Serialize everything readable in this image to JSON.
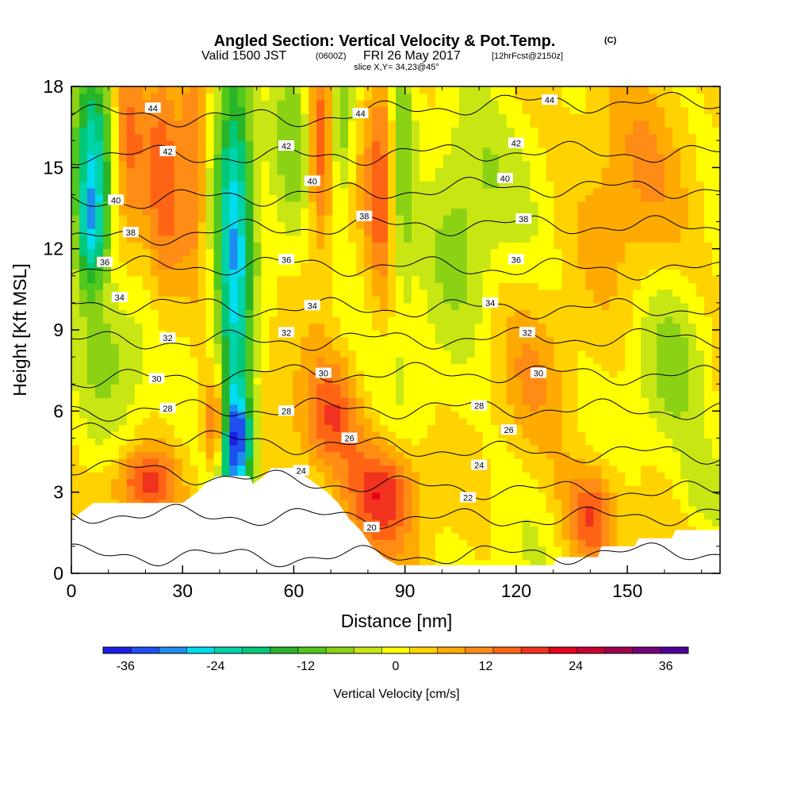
{
  "title": {
    "main": "Angled Section: Vertical Velocity & Pot.Temp.",
    "copyright": "(C)",
    "valid_prefix": "Valid 1500 JST",
    "valid_utc": "(0600Z)",
    "valid_date": "FRI 26 May 2017",
    "forecast": "[12hrFcst@2150z]",
    "slice": "slice X,Y= 34,23@45°"
  },
  "colors": {
    "ramp": [
      "#1e1ee6",
      "#1e50f0",
      "#1e8cf0",
      "#00dcf0",
      "#00d2aa",
      "#00c878",
      "#28b428",
      "#50c81e",
      "#8cd214",
      "#c8e614",
      "#ffff00",
      "#ffd200",
      "#ffaa00",
      "#ff8c14",
      "#ff6414",
      "#f0321e",
      "#e6001e",
      "#c80032",
      "#a00050",
      "#780078",
      "#500096"
    ],
    "terrain": "#ffffff",
    "contour": "#000000"
  },
  "chart_data": {
    "type": "heatmap",
    "xlabel": "Distance [nm]",
    "ylabel": "Height [Kft MSL]",
    "xlim": [
      0,
      175
    ],
    "ylim": [
      0,
      18
    ],
    "xticks": [
      0,
      30,
      60,
      90,
      120,
      150
    ],
    "yticks": [
      0,
      3,
      6,
      9,
      12,
      15,
      18
    ],
    "colorbar": {
      "label": "Vertical Velocity [cm/s]",
      "min": -39,
      "max": 39,
      "step": 3.714,
      "tick_values": [
        -36,
        -24,
        -12,
        0,
        12,
        24,
        36
      ],
      "tick_labels": [
        "-36",
        "-24",
        "-12",
        "0",
        "12",
        "24",
        "36"
      ]
    },
    "terrain_kft": [
      [
        0,
        2.0
      ],
      [
        3,
        2.3
      ],
      [
        6,
        2.6
      ],
      [
        30,
        2.6
      ],
      [
        34,
        3.0
      ],
      [
        36,
        3.3
      ],
      [
        39,
        3.6
      ],
      [
        48,
        3.6
      ],
      [
        49,
        3.3
      ],
      [
        52,
        3.6
      ],
      [
        54,
        3.9
      ],
      [
        60,
        3.9
      ],
      [
        63,
        3.6
      ],
      [
        66,
        3.3
      ],
      [
        69,
        3.0
      ],
      [
        72,
        2.6
      ],
      [
        75,
        2.0
      ],
      [
        78,
        1.6
      ],
      [
        81,
        1.0
      ],
      [
        84,
        0.6
      ],
      [
        88,
        0.3
      ],
      [
        96,
        0.3
      ],
      [
        130,
        0.3
      ],
      [
        131,
        0.6
      ],
      [
        142,
        0.6
      ],
      [
        143,
        1.0
      ],
      [
        152,
        1.0
      ],
      [
        153,
        1.3
      ],
      [
        162,
        1.3
      ],
      [
        163,
        1.6
      ],
      [
        175,
        1.6
      ]
    ],
    "velocity_features": [
      {
        "x": 44,
        "y": 10,
        "sx": 3.5,
        "sy": 8,
        "amp": -28
      },
      {
        "x": 45,
        "y": 5,
        "sx": 3,
        "sy": 1.2,
        "amp": -20
      },
      {
        "x": 6,
        "y": 15,
        "sx": 4,
        "sy": 3,
        "amp": -25
      },
      {
        "x": 5,
        "y": 12.5,
        "sx": 2.5,
        "sy": 1.5,
        "amp": -14
      },
      {
        "x": 15,
        "y": 16,
        "sx": 3,
        "sy": 3,
        "amp": 10
      },
      {
        "x": 25,
        "y": 15,
        "sx": 3.5,
        "sy": 4.5,
        "amp": 10
      },
      {
        "x": 33,
        "y": 16,
        "sx": 2.5,
        "sy": 3,
        "amp": 12
      },
      {
        "x": 39,
        "y": 5.5,
        "sx": 2,
        "sy": 1.3,
        "amp": 20
      },
      {
        "x": 20,
        "y": 3.4,
        "sx": 6,
        "sy": 0.9,
        "amp": 15
      },
      {
        "x": 60,
        "y": 16,
        "sx": 4,
        "sy": 3,
        "amp": -8
      },
      {
        "x": 67,
        "y": 15.5,
        "sx": 2.5,
        "sy": 2.5,
        "amp": 16
      },
      {
        "x": 73,
        "y": 16.5,
        "sx": 2.5,
        "sy": 2,
        "amp": -12
      },
      {
        "x": 84,
        "y": 15,
        "sx": 3,
        "sy": 4,
        "amp": 12
      },
      {
        "x": 89,
        "y": 15,
        "sx": 2.5,
        "sy": 3.5,
        "amp": -14
      },
      {
        "x": 70,
        "y": 5.8,
        "sx": 6,
        "sy": 1.5,
        "amp": 14
      },
      {
        "x": 84,
        "y": 3.0,
        "sx": 7,
        "sy": 1.3,
        "amp": 16
      },
      {
        "x": 105,
        "y": 13,
        "sx": 8,
        "sy": 3.5,
        "amp": -9
      },
      {
        "x": 162,
        "y": 8,
        "sx": 7,
        "sy": 2.5,
        "amp": -7
      },
      {
        "x": 11,
        "y": 8,
        "sx": 6,
        "sy": 1.8,
        "amp": -7
      },
      {
        "x": 140,
        "y": 2.2,
        "sx": 5,
        "sy": 1.2,
        "amp": 14
      },
      {
        "x": 125,
        "y": 7.5,
        "sx": 6,
        "sy": 2,
        "amp": 4
      },
      {
        "x": 150,
        "y": 14,
        "sx": 10,
        "sy": 4,
        "amp": 5
      },
      {
        "x": 170,
        "y": 3.0,
        "sx": 5,
        "sy": 1.0,
        "amp": -6
      }
    ],
    "isentropes": [
      {
        "theta": 20,
        "h": [
          0.7,
          0.6,
          0.7,
          0.8
        ]
      },
      {
        "theta": 22,
        "h": [
          2.2,
          2.1,
          2.0,
          2.2
        ]
      },
      {
        "theta": 24,
        "h": [
          4.0,
          3.4,
          3.1,
          3.0
        ]
      },
      {
        "theta": 26,
        "h": [
          5.2,
          4.8,
          4.5,
          4.4
        ]
      },
      {
        "theta": 28,
        "h": [
          6.0,
          6.1,
          6.1,
          6.0
        ]
      },
      {
        "theta": 30,
        "h": [
          7.1,
          7.4,
          7.4,
          7.3
        ]
      },
      {
        "theta": 32,
        "h": [
          8.6,
          8.6,
          8.7,
          8.7
        ]
      },
      {
        "theta": 34,
        "h": [
          10.0,
          9.8,
          9.8,
          9.8
        ]
      },
      {
        "theta": 36,
        "h": [
          11.3,
          11.4,
          11.3,
          11.2
        ]
      },
      {
        "theta": 38,
        "h": [
          12.3,
          12.8,
          12.9,
          12.8
        ]
      },
      {
        "theta": 40,
        "h": [
          13.7,
          14.0,
          14.3,
          14.2
        ]
      },
      {
        "theta": 42,
        "h": [
          15.5,
          15.4,
          15.6,
          15.5
        ]
      },
      {
        "theta": 44,
        "h": [
          17.0,
          16.8,
          17.4,
          17.4
        ]
      }
    ],
    "contour_labels": [
      {
        "text": "44",
        "x": 22,
        "y": 17.2
      },
      {
        "text": "44",
        "x": 78,
        "y": 17.0
      },
      {
        "text": "44",
        "x": 129,
        "y": 17.5
      },
      {
        "text": "42",
        "x": 26,
        "y": 15.6
      },
      {
        "text": "42",
        "x": 58,
        "y": 15.8
      },
      {
        "text": "42",
        "x": 120,
        "y": 15.9
      },
      {
        "text": "40",
        "x": 12,
        "y": 13.8
      },
      {
        "text": "40",
        "x": 65,
        "y": 14.5
      },
      {
        "text": "40",
        "x": 117,
        "y": 14.6
      },
      {
        "text": "38",
        "x": 16,
        "y": 12.6
      },
      {
        "text": "38",
        "x": 79,
        "y": 13.2
      },
      {
        "text": "38",
        "x": 122,
        "y": 13.1
      },
      {
        "text": "36",
        "x": 9,
        "y": 11.5
      },
      {
        "text": "36",
        "x": 58,
        "y": 11.6
      },
      {
        "text": "36",
        "x": 120,
        "y": 11.6
      },
      {
        "text": "34",
        "x": 13,
        "y": 10.2
      },
      {
        "text": "34",
        "x": 65,
        "y": 9.9
      },
      {
        "text": "34",
        "x": 113,
        "y": 10.0
      },
      {
        "text": "32",
        "x": 26,
        "y": 8.7
      },
      {
        "text": "32",
        "x": 58,
        "y": 8.9
      },
      {
        "text": "32",
        "x": 123,
        "y": 8.9
      },
      {
        "text": "30",
        "x": 23,
        "y": 7.2
      },
      {
        "text": "30",
        "x": 68,
        "y": 7.4
      },
      {
        "text": "30",
        "x": 126,
        "y": 7.4
      },
      {
        "text": "28",
        "x": 26,
        "y": 6.1
      },
      {
        "text": "28",
        "x": 58,
        "y": 6.0
      },
      {
        "text": "28",
        "x": 110,
        "y": 6.2
      },
      {
        "text": "26",
        "x": 75,
        "y": 5.0
      },
      {
        "text": "26",
        "x": 118,
        "y": 5.3
      },
      {
        "text": "24",
        "x": 62,
        "y": 3.8
      },
      {
        "text": "24",
        "x": 110,
        "y": 4.0
      },
      {
        "text": "22",
        "x": 107,
        "y": 2.8
      },
      {
        "text": "20",
        "x": 81,
        "y": 1.7
      }
    ]
  }
}
